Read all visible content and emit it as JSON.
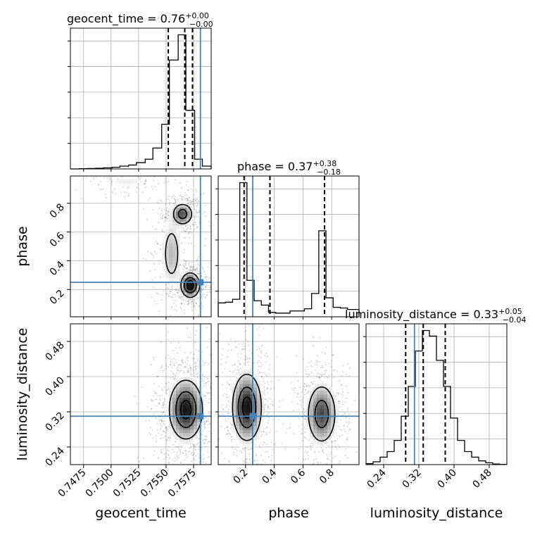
{
  "chart_data": {
    "type": "corner",
    "parameters": [
      "geocent_time",
      "phase",
      "luminosity_distance"
    ],
    "titles": [
      {
        "param": "geocent_time",
        "text": "geocent_time = 0.76",
        "plus": "+0.00",
        "minus": "−0.00"
      },
      {
        "param": "phase",
        "text": "phase = 0.37",
        "plus": "+0.38",
        "minus": "−0.18"
      },
      {
        "param": "luminosity_distance",
        "text": "luminosity_distance = 0.33",
        "plus": "+0.05",
        "minus": "−0.04"
      }
    ],
    "axis_labels": {
      "geocent_time": "geocent_time",
      "phase": "phase",
      "luminosity_distance": "luminosity_distance"
    },
    "ranges": {
      "geocent_time": [
        0.7463,
        0.7591
      ],
      "phase": [
        0.01,
        0.99
      ],
      "luminosity_distance": [
        0.2,
        0.52
      ]
    },
    "ticks": {
      "geocent_time": [
        "0.7475",
        "0.7500",
        "0.7525",
        "0.7550",
        "0.7575"
      ],
      "phase": [
        "0.2",
        "0.4",
        "0.6",
        "0.8"
      ],
      "luminosity_distance": [
        "0.24",
        "0.32",
        "0.40",
        "0.48"
      ]
    },
    "injection": {
      "geocent_time": 0.75812,
      "phase": 0.25,
      "luminosity_distance": 0.31
    },
    "quantiles": {
      "geocent_time": [
        0.7552,
        0.7567,
        0.7574
      ],
      "phase": [
        0.19,
        0.37,
        0.75
      ],
      "luminosity_distance": [
        0.29,
        0.33,
        0.38
      ]
    },
    "histograms": {
      "geocent_time": {
        "edges": [
          0.7463,
          0.7471,
          0.7478,
          0.7486,
          0.7493,
          0.7501,
          0.7508,
          0.7516,
          0.7523,
          0.7531,
          0.7538,
          0.7546,
          0.7553,
          0.7561,
          0.7568,
          0.7576,
          0.7583,
          0.7591
        ],
        "counts": [
          0,
          2,
          3,
          5,
          8,
          12,
          20,
          28,
          45,
          70,
          150,
          320,
          780,
          960,
          420,
          70,
          20
        ]
      },
      "phase": {
        "edges": [
          0.01,
          0.06,
          0.11,
          0.16,
          0.21,
          0.26,
          0.31,
          0.36,
          0.41,
          0.46,
          0.51,
          0.56,
          0.61,
          0.66,
          0.71,
          0.76,
          0.81,
          0.86,
          0.91,
          0.96,
          0.99
        ],
        "counts": [
          95,
          100,
          120,
          920,
          250,
          110,
          80,
          30,
          25,
          25,
          40,
          40,
          55,
          160,
          590,
          130,
          65,
          60,
          50,
          50
        ]
      },
      "luminosity_distance": {
        "edges": [
          0.2,
          0.216,
          0.232,
          0.248,
          0.264,
          0.28,
          0.296,
          0.312,
          0.328,
          0.344,
          0.36,
          0.376,
          0.392,
          0.408,
          0.424,
          0.44,
          0.456,
          0.472,
          0.488,
          0.504,
          0.52
        ],
        "counts": [
          5,
          15,
          40,
          70,
          130,
          260,
          420,
          610,
          720,
          690,
          560,
          420,
          250,
          130,
          70,
          40,
          20,
          10,
          3,
          1
        ]
      }
    },
    "density": [
      {
        "x": "geocent_time",
        "y": "phase",
        "modes": [
          {
            "x": 0.7565,
            "y": 0.725,
            "sx": 0.00055,
            "sy": 0.045,
            "weight": 1.0
          },
          {
            "x": 0.7572,
            "y": 0.23,
            "sx": 0.0005,
            "sy": 0.05,
            "weight": 1.4
          },
          {
            "x": 0.7555,
            "y": 0.45,
            "sx": 0.0006,
            "sy": 0.15,
            "weight": 0.5
          },
          {
            "x": 0.7515,
            "y": 0.95,
            "sx": 0.0015,
            "sy": 0.03,
            "weight": 0.25
          }
        ]
      },
      {
        "x": "geocent_time",
        "y": "luminosity_distance",
        "modes": [
          {
            "x": 0.7568,
            "y": 0.325,
            "sx": 0.0009,
            "sy": 0.04,
            "weight": 1.0
          }
        ]
      },
      {
        "x": "phase",
        "y": "luminosity_distance",
        "modes": [
          {
            "x": 0.21,
            "y": 0.33,
            "sx": 0.06,
            "sy": 0.045,
            "weight": 1.0
          },
          {
            "x": 0.73,
            "y": 0.315,
            "sx": 0.06,
            "sy": 0.04,
            "weight": 0.8
          }
        ]
      }
    ],
    "colors": {
      "truth": "#4682b4",
      "hist": "#000000",
      "quantile": "#000000",
      "grid": "#b0b0b0",
      "scatter": "#555555"
    },
    "grid": true
  }
}
